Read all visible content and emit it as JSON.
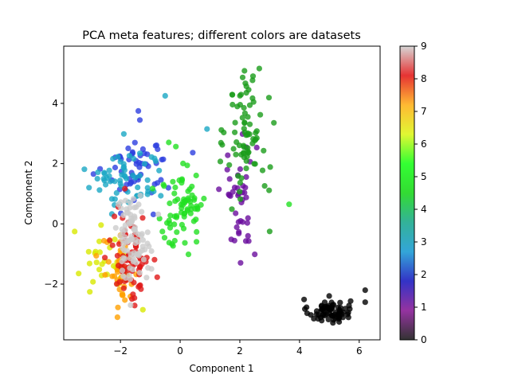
{
  "chart_data": {
    "type": "scatter",
    "title": "PCA meta features; different colors are datasets",
    "xlabel": "Component 1",
    "ylabel": "Component 2",
    "xlim": [
      -3.9,
      6.7
    ],
    "ylim": [
      -3.85,
      5.9
    ],
    "xticks": [
      -2,
      0,
      2,
      4,
      6
    ],
    "xtick_labels": [
      "−2",
      "0",
      "2",
      "4",
      "6"
    ],
    "yticks": [
      -2,
      0,
      2,
      4
    ],
    "ytick_labels": [
      "−2",
      "0",
      "2",
      "4"
    ],
    "grid": false,
    "marker_alpha": 0.8,
    "colorbar": {
      "colormap": "nipy_spectral",
      "range": [
        0,
        9
      ],
      "ticks": [
        0,
        1,
        2,
        3,
        4,
        5,
        6,
        7,
        8,
        9
      ],
      "tick_labels": [
        "0",
        "1",
        "2",
        "3",
        "4",
        "5",
        "6",
        "7",
        "8",
        "9"
      ]
    },
    "clusters": [
      {
        "dataset": 0,
        "color": "#000000",
        "center": [
          5.0,
          -2.9
        ],
        "spread": [
          0.35,
          0.2
        ],
        "count": 75
      },
      {
        "dataset": 1,
        "color": "#6a0e9e",
        "center": [
          1.95,
          0.9
        ],
        "spread": [
          0.3,
          1.05
        ],
        "count": 42
      },
      {
        "dataset": 2,
        "color": "#2d3ee0",
        "center": [
          -1.35,
          1.9
        ],
        "spread": [
          0.55,
          0.6
        ],
        "count": 55
      },
      {
        "dataset": 3,
        "color": "#1aa8c4",
        "center": [
          -1.8,
          1.5
        ],
        "spread": [
          0.65,
          0.55
        ],
        "count": 60
      },
      {
        "dataset": 4,
        "color": "#1a9c1a",
        "center": [
          2.25,
          3.0
        ],
        "spread": [
          0.35,
          1.1
        ],
        "count": 80
      },
      {
        "dataset": 5,
        "color": "#22e022",
        "center": [
          0.05,
          0.6
        ],
        "spread": [
          0.4,
          0.75
        ],
        "count": 75
      },
      {
        "dataset": 6,
        "color": "#d8e800",
        "center": [
          -2.25,
          -1.2
        ],
        "spread": [
          0.5,
          0.6
        ],
        "count": 30
      },
      {
        "dataset": 7,
        "color": "#ffa000",
        "center": [
          -2.0,
          -1.7
        ],
        "spread": [
          0.3,
          0.6
        ],
        "count": 40
      },
      {
        "dataset": 8,
        "color": "#e01818",
        "center": [
          -1.65,
          -1.1
        ],
        "spread": [
          0.3,
          0.75
        ],
        "count": 80
      },
      {
        "dataset": 9,
        "color": "#cccccc",
        "center": [
          -1.6,
          -0.4
        ],
        "spread": [
          0.3,
          0.7
        ],
        "count": 90
      }
    ],
    "outliers": [
      {
        "x": -0.5,
        "y": 4.25,
        "dataset": 3
      },
      {
        "x": 0.9,
        "y": 3.15,
        "dataset": 3
      },
      {
        "x": -1.4,
        "y": 3.75,
        "dataset": 2
      },
      {
        "x": 3.65,
        "y": 0.65,
        "dataset": 5
      },
      {
        "x": 3.0,
        "y": -0.25,
        "dataset": 4
      },
      {
        "x": -3.4,
        "y": -1.65,
        "dataset": 6
      },
      {
        "x": 6.2,
        "y": -2.2,
        "dataset": 0
      },
      {
        "x": 6.2,
        "y": -2.6,
        "dataset": 0
      },
      {
        "x": -1.25,
        "y": -2.85,
        "dataset": 6
      },
      {
        "x": -2.1,
        "y": -3.1,
        "dataset": 7
      }
    ]
  }
}
